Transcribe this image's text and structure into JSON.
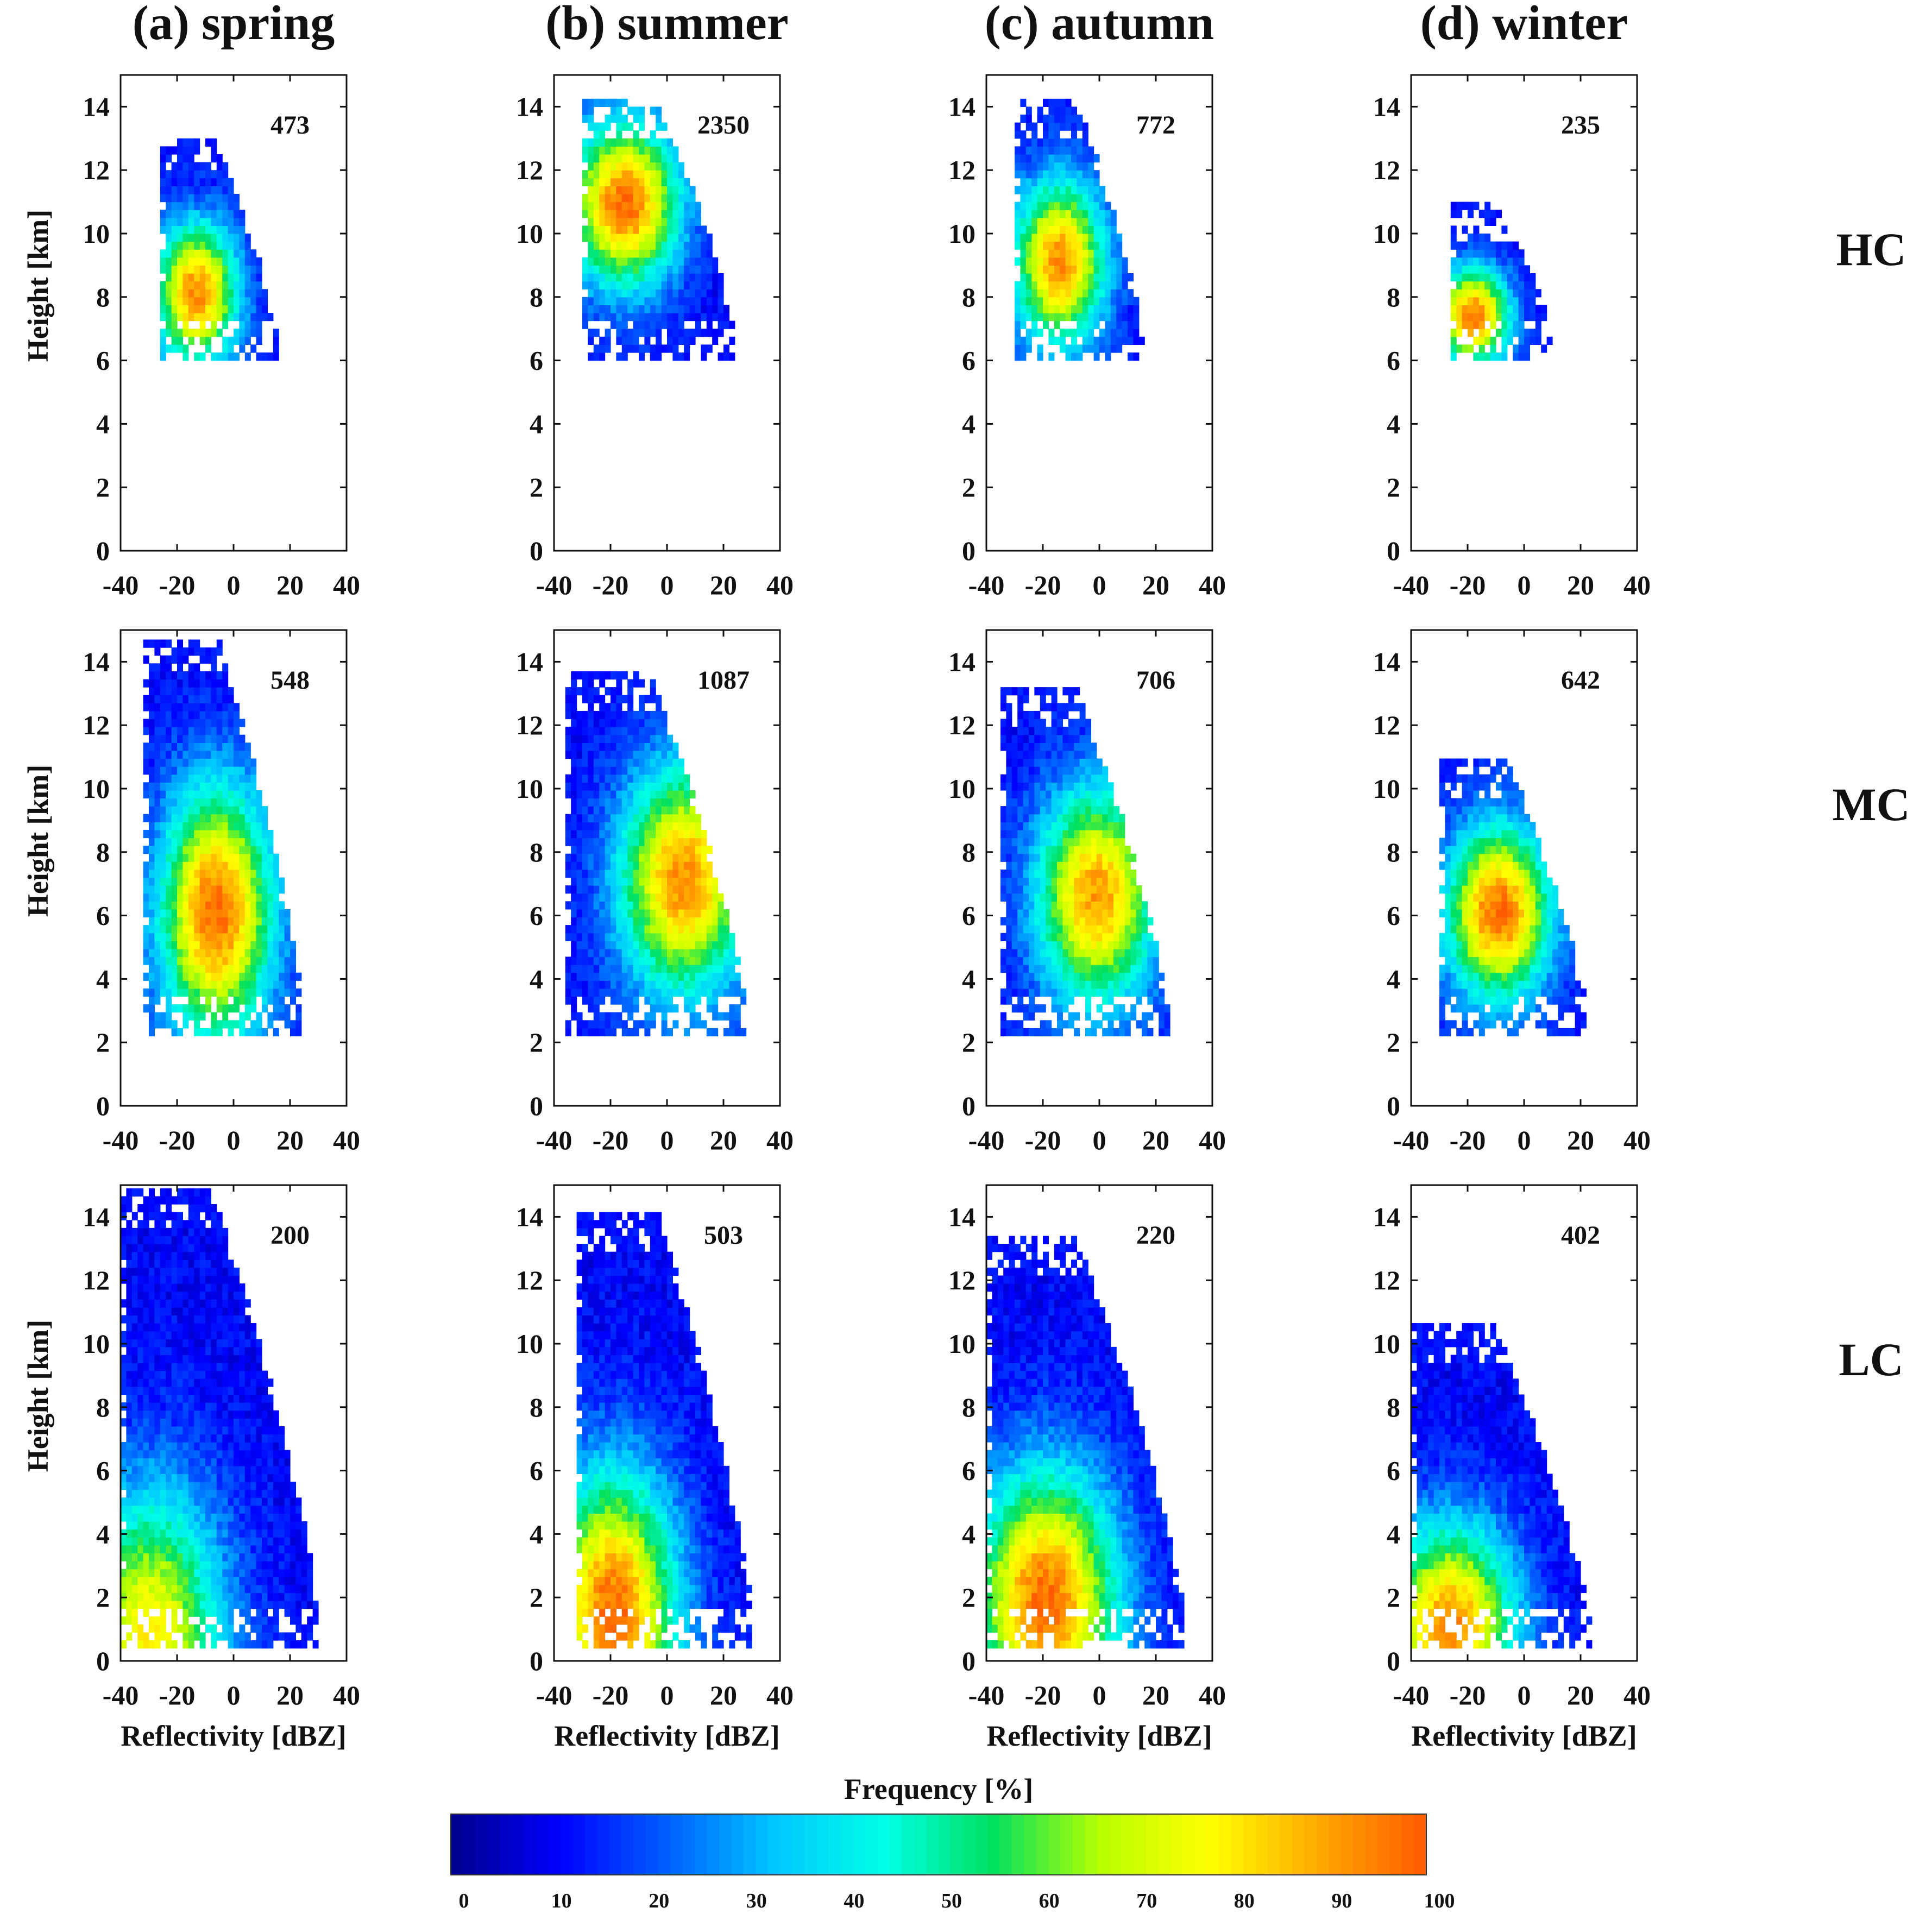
{
  "chart_data": {
    "type": "heatmap",
    "column_titles": [
      "(a) spring",
      "(b) summer",
      "(c) autumn",
      "(d) winter"
    ],
    "row_labels": [
      "HC",
      "MC",
      "LC"
    ],
    "xlabel": "Reflectivity [dBZ]",
    "ylabel": "Height [km]",
    "xlim": [
      -40,
      40
    ],
    "ylim": [
      0,
      15
    ],
    "xticks": [
      "-40",
      "-20",
      "0",
      "20",
      "40"
    ],
    "yticks": [
      "0",
      "2",
      "4",
      "6",
      "8",
      "10",
      "12",
      "14"
    ],
    "colorbar": {
      "label": "Frequency [%]",
      "range": [
        0,
        100
      ],
      "ticks": [
        "0",
        "10",
        "20",
        "30",
        "40",
        "50",
        "60",
        "70",
        "80",
        "90",
        "100"
      ],
      "colors": [
        "#00008c",
        "#0000ff",
        "#0060ff",
        "#00c8ff",
        "#00ffe6",
        "#00e060",
        "#b8ff00",
        "#ffff00",
        "#ffaa00",
        "#ff5a00"
      ]
    },
    "panels": [
      {
        "row": "HC",
        "season": "spring",
        "count": "473",
        "x_range": [
          -26,
          15
        ],
        "y_range": [
          6.0,
          13.0
        ],
        "peak": {
          "x": -14,
          "y": 8.0,
          "frequency": 90
        }
      },
      {
        "row": "HC",
        "season": "summer",
        "count": "2350",
        "x_range": [
          -30,
          24
        ],
        "y_range": [
          6.0,
          14.2
        ],
        "peak": {
          "x": -16,
          "y": 10.8,
          "frequency": 95
        }
      },
      {
        "row": "HC",
        "season": "autumn",
        "count": "772",
        "x_range": [
          -30,
          15
        ],
        "y_range": [
          6.0,
          14.2
        ],
        "peak": {
          "x": -15,
          "y": 9.0,
          "frequency": 90
        }
      },
      {
        "row": "HC",
        "season": "winter",
        "count": "235",
        "x_range": [
          -26,
          10
        ],
        "y_range": [
          6.0,
          10.8
        ],
        "peak": {
          "x": -19,
          "y": 7.3,
          "frequency": 92
        }
      },
      {
        "row": "MC",
        "season": "spring",
        "count": "548",
        "x_range": [
          -32,
          24
        ],
        "y_range": [
          2.2,
          14.7
        ],
        "peak": {
          "x": -7,
          "y": 6.0,
          "frequency": 95
        }
      },
      {
        "row": "MC",
        "season": "summer",
        "count": "1087",
        "x_range": [
          -36,
          28
        ],
        "y_range": [
          2.2,
          13.5
        ],
        "peak": {
          "x": 5,
          "y": 7.0,
          "frequency": 90
        }
      },
      {
        "row": "MC",
        "season": "autumn",
        "count": "706",
        "x_range": [
          -35,
          24
        ],
        "y_range": [
          2.2,
          13.0
        ],
        "peak": {
          "x": -2,
          "y": 6.5,
          "frequency": 88
        }
      },
      {
        "row": "MC",
        "season": "winter",
        "count": "642",
        "x_range": [
          -30,
          22
        ],
        "y_range": [
          2.2,
          10.8
        ],
        "peak": {
          "x": -10,
          "y": 6.0,
          "frequency": 95
        }
      },
      {
        "row": "LC",
        "season": "spring",
        "count": "200",
        "x_range": [
          -40,
          30
        ],
        "y_range": [
          0.4,
          14.7
        ],
        "peak": {
          "x": -30,
          "y": 0.8,
          "frequency": 75
        }
      },
      {
        "row": "LC",
        "season": "summer",
        "count": "503",
        "x_range": [
          -32,
          30
        ],
        "y_range": [
          0.4,
          14.0
        ],
        "peak": {
          "x": -20,
          "y": 1.5,
          "frequency": 95
        }
      },
      {
        "row": "LC",
        "season": "autumn",
        "count": "220",
        "x_range": [
          -40,
          30
        ],
        "y_range": [
          0.4,
          13.2
        ],
        "peak": {
          "x": -20,
          "y": 1.8,
          "frequency": 95
        }
      },
      {
        "row": "LC",
        "season": "winter",
        "count": "402",
        "x_range": [
          -40,
          23
        ],
        "y_range": [
          0.4,
          10.5
        ],
        "peak": {
          "x": -27,
          "y": 1.0,
          "frequency": 90
        }
      }
    ]
  }
}
